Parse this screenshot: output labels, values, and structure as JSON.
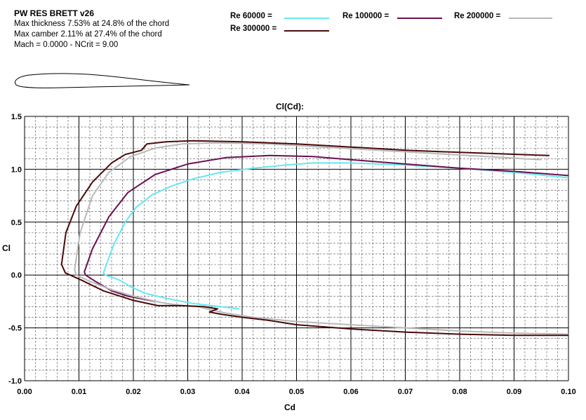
{
  "header": {
    "name": "PW RES BRETT v26",
    "line1": "Max thickness 7.53% at 24.8% of the chord",
    "line2": "Max camber 2.11% at 27.4% of the chord",
    "line3": "Mach = 0.0000 - NCrit = 9.00"
  },
  "chart_data": {
    "type": "line",
    "title": "Cl(Cd):",
    "xlabel": "Cd",
    "ylabel": "Cl",
    "xlim": [
      0.0,
      0.1
    ],
    "ylim": [
      -1.0,
      1.5
    ],
    "grid": true,
    "legend_position": "top",
    "x_ticks": [
      "0.00",
      "0.01",
      "0.02",
      "0.03",
      "0.04",
      "0.05",
      "0.06",
      "0.07",
      "0.08",
      "0.09",
      "0.10"
    ],
    "y_ticks": [
      "-1.0",
      "-0.5",
      "0.0",
      "0.5",
      "1.0",
      "1.5"
    ],
    "series": [
      {
        "name": "Re 60000 =",
        "color": "#66e8f0",
        "x": [
          0.0395,
          0.036,
          0.031,
          0.026,
          0.022,
          0.0195,
          0.0175,
          0.016,
          0.0148,
          0.0145,
          0.0152,
          0.0165,
          0.0185,
          0.0205,
          0.0235,
          0.027,
          0.031,
          0.036,
          0.042,
          0.048,
          0.053,
          0.06,
          0.07,
          0.08,
          0.09,
          0.1
        ],
        "y": [
          -0.32,
          -0.3,
          -0.27,
          -0.22,
          -0.17,
          -0.11,
          -0.05,
          -0.02,
          0.0,
          0.02,
          0.12,
          0.3,
          0.5,
          0.64,
          0.76,
          0.84,
          0.91,
          0.97,
          1.01,
          1.04,
          1.06,
          1.06,
          1.04,
          1.01,
          0.97,
          0.92
        ]
      },
      {
        "name": "Re 100000 =",
        "color": "#6b1050",
        "x": [
          0.024,
          0.022,
          0.019,
          0.016,
          0.013,
          0.0112,
          0.011,
          0.0125,
          0.0155,
          0.019,
          0.024,
          0.03,
          0.037,
          0.045,
          0.053,
          0.06,
          0.07,
          0.08,
          0.09,
          0.1
        ],
        "y": [
          -0.25,
          -0.23,
          -0.2,
          -0.15,
          -0.06,
          0.0,
          0.03,
          0.25,
          0.55,
          0.78,
          0.95,
          1.05,
          1.11,
          1.13,
          1.12,
          1.09,
          1.05,
          1.01,
          0.98,
          0.94
        ]
      },
      {
        "name": "Re 200000 =",
        "color": "#b9b9b9",
        "x": [
          0.1,
          0.09,
          0.08,
          0.07,
          0.06,
          0.05,
          0.042,
          0.037,
          0.0335,
          0.032,
          0.029,
          0.025,
          0.02,
          0.016,
          0.012,
          0.0095,
          0.0092,
          0.0102,
          0.0125,
          0.0155,
          0.0195,
          0.024,
          0.029,
          0.035,
          0.045,
          0.055,
          0.065,
          0.075,
          0.085,
          0.095
        ],
        "y": [
          -0.56,
          -0.55,
          -0.53,
          -0.5,
          -0.47,
          -0.44,
          -0.4,
          -0.36,
          -0.32,
          -0.3,
          -0.29,
          -0.26,
          -0.2,
          -0.14,
          -0.06,
          0.0,
          0.05,
          0.4,
          0.75,
          0.97,
          1.12,
          1.2,
          1.24,
          1.25,
          1.24,
          1.21,
          1.18,
          1.15,
          1.12,
          1.09
        ]
      },
      {
        "name": "Re 300000 =",
        "color": "#4a0a0a",
        "x": [
          0.1,
          0.09,
          0.08,
          0.07,
          0.06,
          0.05,
          0.045,
          0.04,
          0.036,
          0.034,
          0.0355,
          0.033,
          0.029,
          0.0245,
          0.02,
          0.0145,
          0.0105,
          0.0075,
          0.0068,
          0.0076,
          0.0095,
          0.0125,
          0.016,
          0.0185,
          0.0215,
          0.0225,
          0.026,
          0.031,
          0.04,
          0.05,
          0.06,
          0.07,
          0.08,
          0.0965
        ],
        "y": [
          -0.57,
          -0.57,
          -0.56,
          -0.54,
          -0.51,
          -0.47,
          -0.43,
          -0.4,
          -0.37,
          -0.35,
          -0.32,
          -0.3,
          -0.29,
          -0.29,
          -0.24,
          -0.15,
          -0.05,
          0.02,
          0.1,
          0.4,
          0.65,
          0.88,
          1.06,
          1.14,
          1.18,
          1.24,
          1.26,
          1.27,
          1.26,
          1.24,
          1.21,
          1.18,
          1.16,
          1.13
        ]
      }
    ]
  }
}
